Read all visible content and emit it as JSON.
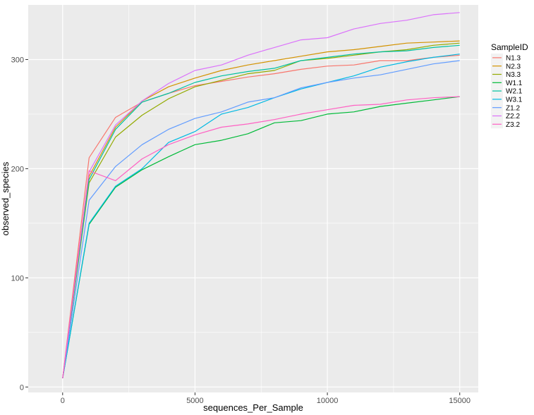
{
  "chart_data": {
    "type": "line",
    "title": "",
    "xlabel": "sequences_Per_Sample",
    "ylabel": "observed_species",
    "xlim": [
      -1300,
      15700
    ],
    "ylim": [
      -5,
      350
    ],
    "xticks": [
      0,
      5000,
      10000,
      15000
    ],
    "xtick_labels": [
      "0",
      "5000",
      "10000",
      "15000"
    ],
    "yticks": [
      0,
      100,
      200,
      300
    ],
    "ytick_labels": [
      "0",
      "100",
      "200",
      "300"
    ],
    "grid": true,
    "legend": {
      "title": "SampleID",
      "position": "right"
    },
    "x": [
      0,
      1000,
      2000,
      3000,
      4000,
      5000,
      6000,
      7000,
      8000,
      9000,
      10000,
      11000,
      12000,
      13000,
      14000,
      15000
    ],
    "series": [
      {
        "name": "N1.3",
        "color": "#F8766D",
        "values": [
          8,
          210,
          247,
          261,
          269,
          276,
          280,
          284,
          287,
          291,
          294,
          295,
          299,
          299,
          302,
          304
        ]
      },
      {
        "name": "N2.3",
        "color": "#D39200",
        "values": [
          8,
          193,
          238,
          262,
          275,
          283,
          290,
          295,
          299,
          303,
          307,
          309,
          312,
          315,
          316,
          317
        ]
      },
      {
        "name": "N3.3",
        "color": "#93AA00",
        "values": [
          8,
          187,
          229,
          249,
          264,
          275,
          281,
          287,
          290,
          299,
          301,
          304,
          307,
          309,
          313,
          315
        ]
      },
      {
        "name": "W1.1",
        "color": "#00BA38",
        "values": [
          8,
          149,
          183,
          199,
          211,
          222,
          226,
          232,
          242,
          244,
          250,
          252,
          257,
          260,
          263,
          266
        ]
      },
      {
        "name": "W2.1",
        "color": "#00C19F",
        "values": [
          8,
          190,
          236,
          261,
          269,
          279,
          285,
          289,
          292,
          299,
          302,
          305,
          307,
          308,
          311,
          313
        ]
      },
      {
        "name": "W3.1",
        "color": "#00B9E3",
        "values": [
          8,
          150,
          184,
          200,
          224,
          234,
          250,
          256,
          265,
          273,
          279,
          285,
          293,
          298,
          302,
          305
        ]
      },
      {
        "name": "Z1.2",
        "color": "#619CFF",
        "values": [
          8,
          171,
          202,
          222,
          236,
          246,
          252,
          261,
          265,
          274,
          279,
          283,
          286,
          291,
          296,
          299
        ]
      },
      {
        "name": "Z2.2",
        "color": "#DB72FB",
        "values": [
          8,
          197,
          240,
          262,
          278,
          290,
          295,
          304,
          311,
          318,
          320,
          328,
          333,
          336,
          341,
          343
        ]
      },
      {
        "name": "Z3.2",
        "color": "#FF61C3",
        "values": [
          8,
          198,
          189,
          209,
          222,
          231,
          238,
          241,
          245,
          250,
          254,
          258,
          259,
          263,
          265,
          266
        ]
      }
    ]
  },
  "colors": {
    "panel_background": "#EBEBEB",
    "grid_major": "#FFFFFF",
    "legend_key_background": "#F2F2F2"
  }
}
